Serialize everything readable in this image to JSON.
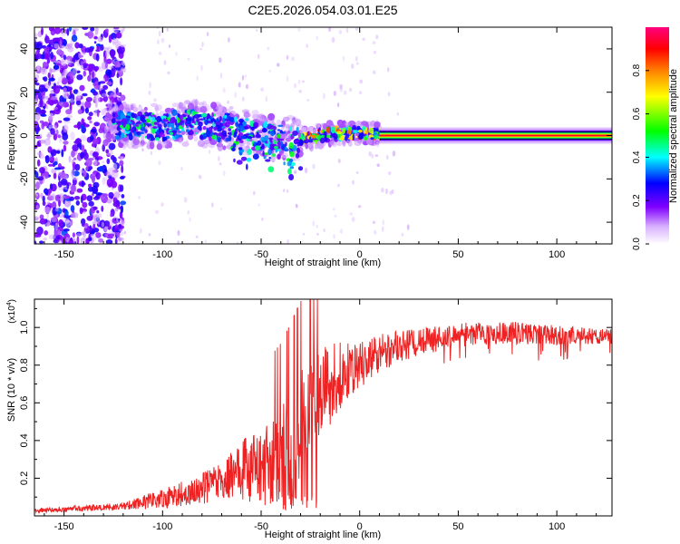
{
  "title": "C2E5.2026.054.03.01.E25",
  "chart_data": [
    {
      "type": "heatmap",
      "xlabel": "Height of straight line (km)",
      "ylabel": "Frequency (Hz)",
      "xlim": [
        -165,
        128
      ],
      "ylim": [
        -50,
        50
      ],
      "xticks": [
        -150,
        -100,
        -50,
        0,
        50,
        100
      ],
      "yticks": [
        -40,
        -20,
        0,
        20,
        40
      ],
      "colorbar": {
        "label": "Normalized spectral amplitude",
        "range": [
          0,
          1
        ],
        "ticks": [
          "0.0",
          "0.2",
          "0.4",
          "0.6",
          "0.8"
        ],
        "tick_values": [
          0.0,
          0.2,
          0.4,
          0.6,
          0.8
        ]
      },
      "features": {
        "noise_region_x": [
          -165,
          -120
        ],
        "ridge": [
          [
            -125,
            5
          ],
          [
            -100,
            4
          ],
          [
            -85,
            6
          ],
          [
            -75,
            4
          ],
          [
            -65,
            4
          ],
          [
            -50,
            0
          ],
          [
            -30,
            -2
          ],
          [
            -20,
            0
          ],
          [
            -10,
            1
          ],
          [
            0,
            1
          ],
          [
            10,
            1
          ]
        ],
        "carrier": {
          "x_start": 10,
          "x_end": 128,
          "frequency": 0,
          "amplitude": 1.0
        }
      },
      "colors": [
        "#ffffff",
        "#8000ff",
        "#0000ff",
        "#00ffff",
        "#00ff00",
        "#ffff00",
        "#ff8000",
        "#ff0000",
        "#ff0080"
      ]
    },
    {
      "type": "line",
      "xlabel": "Height of straight line (km)",
      "ylabel": "SNR (10 * v/v)",
      "yscale_label": "(x10",
      "yscale_exp": "4",
      "yscale_close": ")",
      "xlim": [
        -165,
        128
      ],
      "ylim": [
        0,
        1.15
      ],
      "xticks": [
        -150,
        -100,
        -50,
        0,
        50,
        100
      ],
      "yticks": [
        "0.2",
        "0.4",
        "0.6",
        "0.8",
        "1.0"
      ],
      "ytick_values": [
        0.2,
        0.4,
        0.6,
        0.8,
        1.0
      ],
      "series": [
        {
          "name": "SNR",
          "color": "#ee2222",
          "envelope_x": [
            -165,
            -140,
            -120,
            -100,
            -85,
            -70,
            -60,
            -50,
            -45,
            -40,
            -35,
            -30,
            -25,
            -20,
            -10,
            0,
            10,
            20,
            40,
            60,
            80,
            100,
            128
          ],
          "envelope_y": [
            0.03,
            0.04,
            0.05,
            0.09,
            0.13,
            0.18,
            0.24,
            0.27,
            0.3,
            0.33,
            0.4,
            0.48,
            0.55,
            0.65,
            0.75,
            0.8,
            0.86,
            0.9,
            0.94,
            0.97,
            0.97,
            0.96,
            0.95
          ],
          "jitter_x": [
            -165,
            -120,
            -70,
            -45,
            -30,
            -15,
            0,
            30,
            80,
            128
          ],
          "jitter_y": [
            0.012,
            0.02,
            0.1,
            0.25,
            0.3,
            0.22,
            0.12,
            0.07,
            0.06,
            0.04
          ]
        }
      ]
    }
  ]
}
